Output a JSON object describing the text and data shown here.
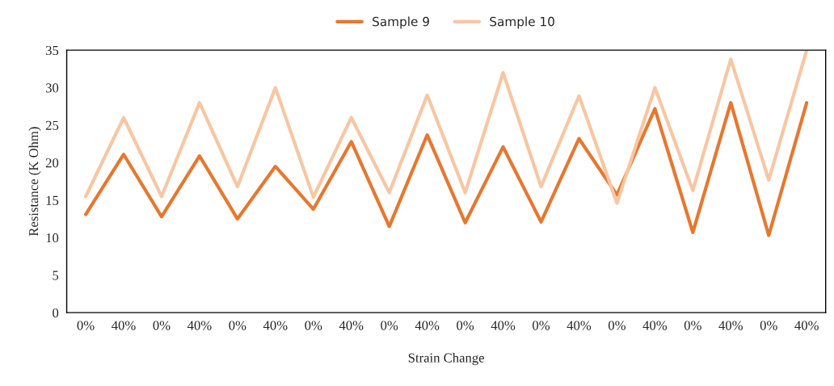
{
  "chart_data": {
    "type": "line",
    "xlabel": "Strain Change",
    "ylabel": "Resistance (K Ohm)",
    "categories": [
      "0%",
      "40%",
      "0%",
      "40%",
      "0%",
      "40%",
      "0%",
      "40%",
      "0%",
      "40%",
      "0%",
      "40%",
      "0%",
      "40%",
      "0%",
      "40%",
      "0%",
      "40%",
      "0%",
      "40%"
    ],
    "series": [
      {
        "name": "Sample 9",
        "color": "#e8772e",
        "values": [
          13.1,
          21.1,
          12.8,
          20.9,
          12.5,
          19.5,
          13.8,
          22.8,
          11.5,
          23.7,
          12.0,
          22.1,
          12.1,
          23.2,
          15.7,
          27.2,
          10.7,
          28.0,
          10.3,
          28.0
        ]
      },
      {
        "name": "Sample 10",
        "color": "#f8c6a2",
        "values": [
          15.5,
          26.0,
          15.5,
          28.0,
          16.8,
          30.0,
          15.4,
          26.0,
          16.0,
          29.0,
          16.0,
          32.0,
          16.8,
          28.9,
          14.6,
          30.0,
          16.3,
          33.8,
          17.7,
          35.0
        ]
      }
    ],
    "ylim": [
      0,
      35
    ],
    "yticks": [
      0,
      5,
      10,
      15,
      20,
      25,
      30,
      35
    ],
    "grid": false,
    "legend": "top",
    "marker": "none",
    "line_style": "solid"
  }
}
